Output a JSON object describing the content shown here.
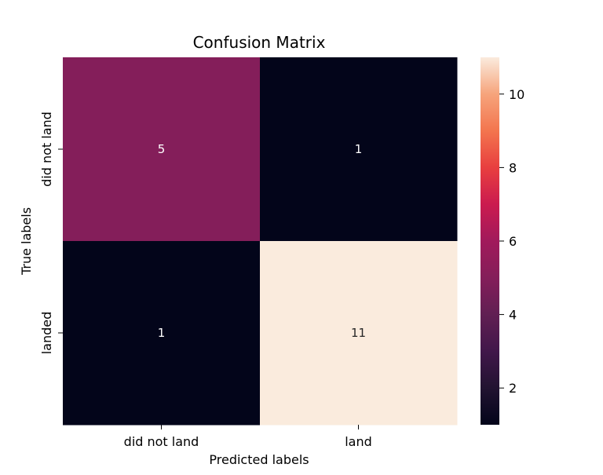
{
  "chart_data": {
    "type": "heatmap",
    "title": "Confusion Matrix",
    "xlabel": "Predicted labels",
    "ylabel": "True labels",
    "x_categories": [
      "did not land",
      "land"
    ],
    "y_categories": [
      "did not land",
      "landed"
    ],
    "values": [
      [
        5,
        1
      ],
      [
        1,
        11
      ]
    ],
    "annotations": [
      "5",
      "1",
      "1",
      "11"
    ],
    "colorscale": {
      "name": "rocket",
      "vmin": 1,
      "vmax": 11,
      "ticks": [
        2,
        4,
        6,
        8,
        10
      ],
      "tick_labels": [
        "2",
        "4",
        "6",
        "8",
        "10"
      ]
    },
    "annotation_colors": {
      "light": "#ffffff",
      "dark": "#262626"
    }
  }
}
